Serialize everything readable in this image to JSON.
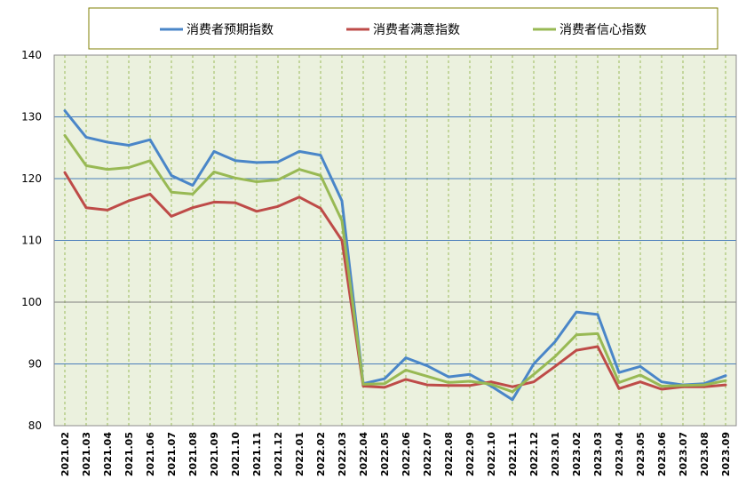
{
  "chart_data": {
    "type": "line",
    "title": "",
    "xlabel": "",
    "ylabel": "",
    "ylim": [
      80,
      140
    ],
    "yticks": [
      "80",
      "90",
      "100",
      "110",
      "120",
      "130",
      "140"
    ],
    "grid": true,
    "legend_position": "top",
    "categories": [
      "2021.02",
      "2021.03",
      "2021.04",
      "2021.05",
      "2021.06",
      "2021.07",
      "2021.08",
      "2021.09",
      "2021.10",
      "2021.11",
      "2021.12",
      "2022.01",
      "2022.02",
      "2022.03",
      "2022.04",
      "2022.05",
      "2022.06",
      "2022.07",
      "2022.08",
      "2022.09",
      "2022.10",
      "2022.11",
      "2022.12",
      "2023.01",
      "2023.02",
      "2023.03",
      "2023.04",
      "2023.05",
      "2023.06",
      "2023.07",
      "2023.08",
      "2023.09"
    ],
    "series": [
      {
        "name": "消费者预期指数",
        "color": "#4a86c8",
        "values": [
          131.0,
          126.7,
          125.9,
          125.4,
          126.3,
          120.5,
          118.9,
          124.4,
          122.9,
          122.6,
          122.7,
          124.4,
          123.8,
          116.4,
          86.8,
          87.6,
          91.0,
          89.7,
          87.9,
          88.3,
          86.4,
          84.2,
          90.0,
          93.6,
          98.4,
          98.0,
          88.6,
          89.6,
          87.1,
          86.6,
          86.8,
          88.1
        ]
      },
      {
        "name": "消费者满意指数",
        "color": "#be4b48",
        "values": [
          121.0,
          115.3,
          114.9,
          116.4,
          117.5,
          113.9,
          115.3,
          116.2,
          116.1,
          114.7,
          115.5,
          117.0,
          115.2,
          110.0,
          86.4,
          86.2,
          87.5,
          86.6,
          86.5,
          86.5,
          87.1,
          86.3,
          87.1,
          89.6,
          92.2,
          92.8,
          86.0,
          87.1,
          85.9,
          86.3,
          86.3,
          86.6
        ]
      },
      {
        "name": "消费者信心指数",
        "color": "#98b954",
        "values": [
          127.0,
          122.1,
          121.5,
          121.8,
          122.9,
          117.8,
          117.5,
          121.1,
          120.1,
          119.5,
          119.8,
          121.5,
          120.5,
          113.2,
          86.7,
          86.8,
          89.0,
          88.0,
          87.0,
          87.2,
          86.7,
          85.5,
          88.3,
          91.2,
          94.7,
          94.9,
          87.0,
          88.2,
          86.4,
          86.5,
          86.6,
          87.3
        ]
      }
    ]
  }
}
